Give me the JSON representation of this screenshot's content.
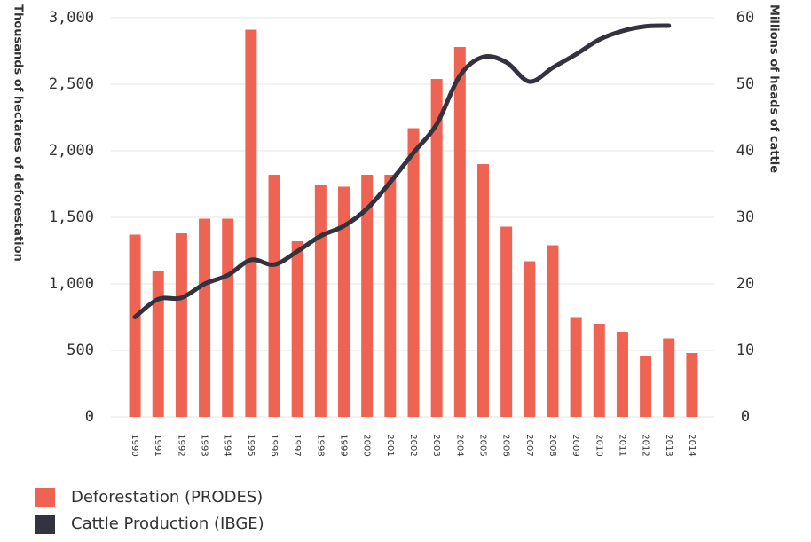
{
  "chart_data": {
    "type": "bar_line",
    "categories": [
      "1990",
      "1991",
      "1992",
      "1993",
      "1994",
      "1995",
      "1996",
      "1997",
      "1998",
      "1999",
      "2000",
      "2001",
      "2002",
      "2003",
      "2004",
      "2005",
      "2006",
      "2007",
      "2008",
      "2009",
      "2010",
      "2011",
      "2012",
      "2013",
      "2014"
    ],
    "series": [
      {
        "name": "Deforestation (PRODES)",
        "color": "#ee6352",
        "type": "bar",
        "axis": "y",
        "values": [
          1370,
          1100,
          1380,
          1490,
          1490,
          2910,
          1820,
          1320,
          1740,
          1730,
          1820,
          1820,
          2170,
          2540,
          2780,
          1900,
          1430,
          1170,
          1290,
          750,
          700,
          640,
          460,
          590,
          480
        ]
      },
      {
        "name": "Cattle Production (IBGE)",
        "color": "#33333f",
        "type": "line",
        "axis": "y2",
        "values": [
          15,
          17.7,
          17.9,
          20,
          21.3,
          23.6,
          22.9,
          24.9,
          27.2,
          28.7,
          31.3,
          35.3,
          39.7,
          44,
          51.3,
          54.1,
          53.3,
          50.4,
          52.5,
          54.5,
          56.7,
          58,
          58.7,
          58.8,
          null
        ]
      }
    ],
    "y_label": "Thousands of hectares of deforestation",
    "y2_label": "Millions of heads of cattle",
    "ylim": [
      0,
      3000
    ],
    "yticks": [
      0,
      500,
      {
        "value": 1000,
        "label": "1,000"
      },
      {
        "value": 1500,
        "label": "1,500"
      },
      {
        "value": 2000,
        "label": "2,000"
      },
      {
        "value": 2500,
        "label": "2,500"
      },
      {
        "value": 3000,
        "label": "3,000"
      }
    ],
    "y2lim": [
      0,
      60
    ],
    "y2ticks": [
      0,
      10,
      20,
      30,
      40,
      50,
      60
    ],
    "grid": true,
    "legend": "bottom-left"
  }
}
